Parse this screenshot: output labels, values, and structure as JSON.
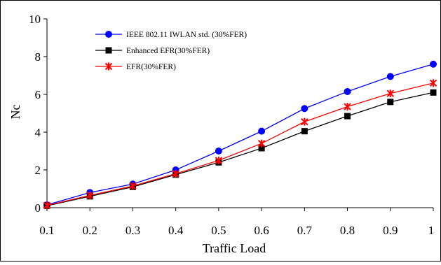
{
  "chart_data": {
    "type": "line",
    "xlabel": "Traffic Load",
    "ylabel": "Nc",
    "xlim": [
      0.1,
      1
    ],
    "ylim": [
      0,
      10
    ],
    "x": [
      0.1,
      0.2,
      0.3,
      0.4,
      0.5,
      0.6,
      0.7,
      0.8,
      0.9,
      1
    ],
    "x_tick_labels": [
      "0.1",
      "0.2",
      "0.3",
      "0.4",
      "0.5",
      "0.6",
      "0.7",
      "0.8",
      "0.9",
      "1"
    ],
    "y_tick_labels": [
      "0",
      "2",
      "4",
      "6",
      "8",
      "10"
    ],
    "y_ticks": [
      0,
      2,
      4,
      6,
      8,
      10
    ],
    "grid": false,
    "legend_position": "top-left",
    "series": [
      {
        "name": "IEEE 802.11 IWLAN std. (30%FER)",
        "color": "#0000ff",
        "marker": "circle",
        "values": [
          0.15,
          0.8,
          1.25,
          2.0,
          3.0,
          4.05,
          5.25,
          6.15,
          6.95,
          7.6
        ]
      },
      {
        "name": "Enhanced EFR(30%FER)",
        "color": "#000000",
        "marker": "square",
        "values": [
          0.1,
          0.6,
          1.1,
          1.75,
          2.4,
          3.15,
          4.05,
          4.85,
          5.6,
          6.1
        ]
      },
      {
        "name": "EFR(30%FER)",
        "color": "#ff0000",
        "marker": "asterisk",
        "values": [
          0.12,
          0.65,
          1.15,
          1.8,
          2.5,
          3.4,
          4.55,
          5.35,
          6.05,
          6.6
        ]
      }
    ]
  }
}
